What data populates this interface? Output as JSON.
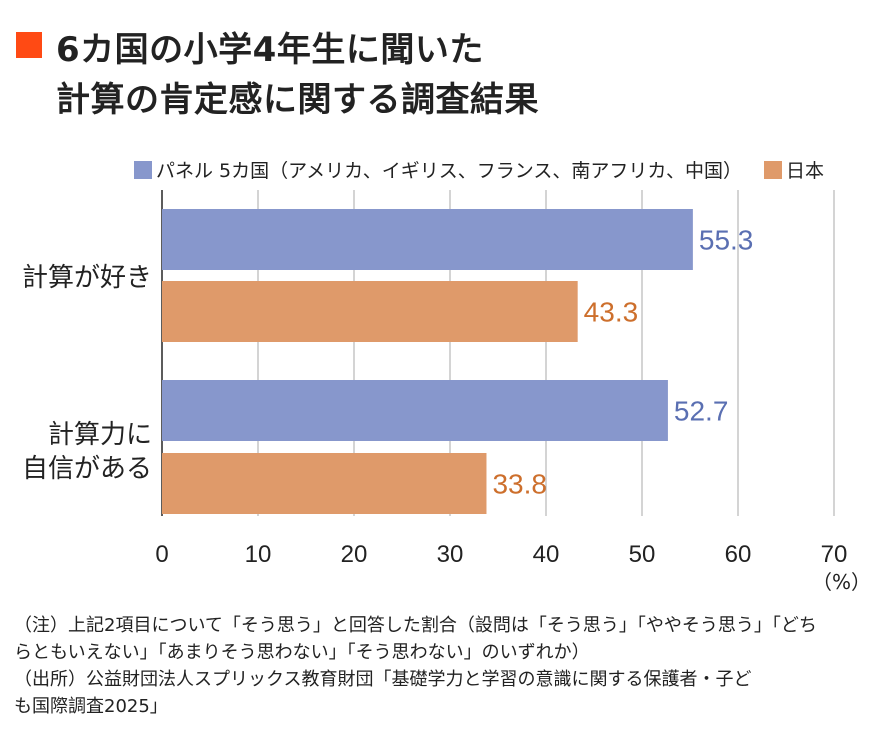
{
  "title": {
    "line1": "6カ国の小学4年生に聞いた",
    "line2": "計算の肯定感に関する調査結果"
  },
  "colors": {
    "accent": "#ff4a14",
    "panel": "#8797cc",
    "japan": "#df9a6a",
    "panel_text": "#5a6fb2",
    "japan_text": "#cd6f2c"
  },
  "chart_data": {
    "type": "bar",
    "orientation": "horizontal",
    "categories": [
      "計算が好き",
      "計算力に自信がある"
    ],
    "category_lines": [
      [
        "計算が好き"
      ],
      [
        "計算力に",
        "自信がある"
      ]
    ],
    "series": [
      {
        "name": "パネル 5カ国（アメリカ、イギリス、フランス、南アフリカ、中国）",
        "values": [
          55.3,
          52.7
        ]
      },
      {
        "name": "日本",
        "values": [
          43.3,
          33.8
        ]
      }
    ],
    "xlim": [
      0,
      70
    ],
    "xticks": [
      "0",
      "10",
      "20",
      "30",
      "40",
      "50",
      "60",
      "70"
    ],
    "value_labels": [
      [
        "55.3",
        "52.7"
      ],
      [
        "43.3",
        "33.8"
      ]
    ],
    "unit": "（%）",
    "grid": true,
    "legend_position": "top"
  },
  "notes": {
    "line1": "（注）上記2項目について「そう思う」と回答した割合（設問は「そう思う」「ややそう思う」「どち",
    "line2": "らともいえない」「あまりそう思わない」「そう思わない」のいずれか）",
    "line3": "（出所）公益財団法人スプリックス教育財団「基礎学力と学習の意識に関する保護者・子ど",
    "line4": "も国際調査2025」"
  }
}
